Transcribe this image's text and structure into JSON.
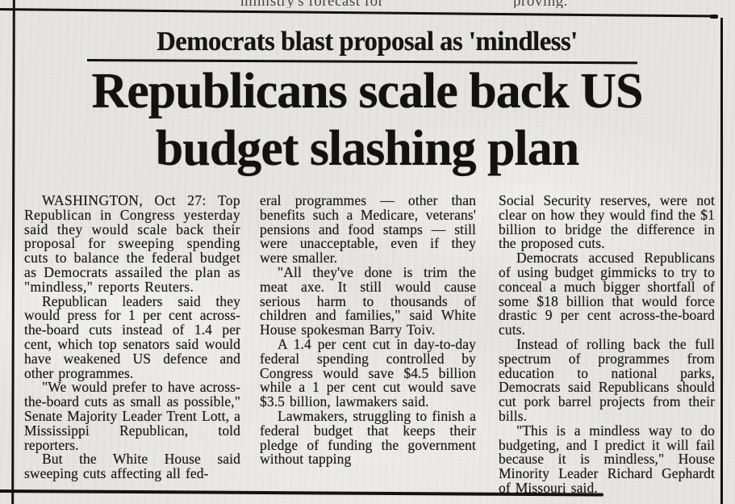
{
  "colors": {
    "paper": "#e7e5e1",
    "ink": "#1b1a18",
    "rule": "#141312"
  },
  "overline_fragments": {
    "left": "ministry's forecast for",
    "right": "proving."
  },
  "article": {
    "kicker": "Democrats blast proposal as 'mindless'",
    "headline": {
      "line1": "Republicans scale back US",
      "line2": "budget slashing plan"
    },
    "columns": [
      {
        "paragraphs": [
          "WASHINGTON, Oct 27: Top Republican in Congress yesterday said they would scale back their proposal for sweeping spending cuts to balance the federal budget as Democrats assailed the plan as \"mindless,\" reports Reuters.",
          "Republican leaders said they would press for 1 per cent across-the-board cuts instead of 1.4 per cent, which top senators said would have weakened US defence and other programmes.",
          "\"We would prefer to have across-the-board cuts as small as possible,\" Senate Majority Leader Trent Lott, a Mississippi Republican, told reporters.",
          "But the White House said sweeping cuts affecting all fed-"
        ]
      },
      {
        "paragraphs": [
          "eral programmes — other than benefits such a Medicare, veterans' pensions and food stamps — still were unacceptable, even if they were smaller.",
          "\"All they've done is trim the meat axe. It still would cause serious harm to thousands of children and families,\" said White House spokesman Barry Toiv.",
          "A 1.4 per cent cut in day-to-day federal spending controlled by Congress would save $4.5 billion while a 1 per cent cut would save $3.5 billion, lawmakers said.",
          "Lawmakers, struggling to finish a federal budget that keeps their pledge of funding the government without tapping"
        ]
      },
      {
        "paragraphs": [
          "Social Security reserves, were not clear on how they would find the $1 billion to bridge the difference in the proposed cuts.",
          "Democrats accused Republicans of using budget gimmicks to try to conceal a much bigger shortfall of some $18 billion that would force drastic 9 per cent across-the-board cuts.",
          "Instead of rolling back the full spectrum of programmes from education to national parks, Democrats said Republicans should cut pork barrel projects from their bills.",
          "\"This is a mindless way to do budgeting, and I predict it will fail because it is mindless,\" House Minority Leader Richard Gephardt of Missouri said."
        ]
      }
    ]
  }
}
